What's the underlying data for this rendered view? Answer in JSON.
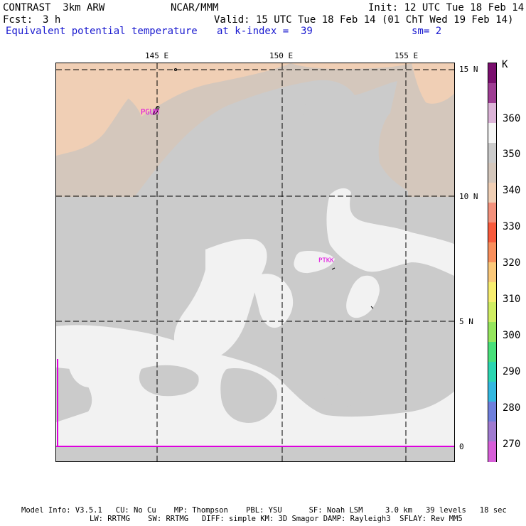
{
  "header": {
    "model": "CONTRAST  3km ARW",
    "org": "NCAR/MMM",
    "init": "Init: 12 UTC Tue 18 Feb 14",
    "fcst_label": "Fcst:",
    "fcst_value": "3 h",
    "valid": "Valid: 15 UTC Tue 18 Feb 14 (01 ChT Wed 19 Feb 14)",
    "field": "Equivalent potential temperature",
    "level": "at k-index =  39",
    "smooth": "sm= 2"
  },
  "axes": {
    "lon_labels": [
      "145 E",
      "150 E",
      "155 E"
    ],
    "lat_labels": [
      "15 N",
      "10 N",
      "5 N",
      "0"
    ]
  },
  "stations": [
    "PGUM",
    "PTKK"
  ],
  "legend": {
    "unit": "K",
    "ticks": [
      "360",
      "350",
      "340",
      "330",
      "320",
      "310",
      "300",
      "290",
      "280",
      "270"
    ],
    "colors": [
      "#7a0f6e",
      "#9e3d93",
      "#dcb4d8",
      "#f5f5f5",
      "#cbcbcb",
      "#d4c7bc",
      "#f0cfb5",
      "#f3917c",
      "#f85a3c",
      "#f98f5c",
      "#fbc97a",
      "#f8ee70",
      "#d0ee63",
      "#95e65d",
      "#48e07a",
      "#2bd6b1",
      "#33b8e0",
      "#6f7fdc",
      "#a07bd0",
      "#d75fd8"
    ]
  },
  "colors": {
    "warm_region": "#f0cfb5",
    "mid_region": "#d4c7bc",
    "base_region": "#cbcbcb",
    "light_region": "#f2f2f2",
    "station_label": "#e000e0",
    "title_blue": "#1a1ad0"
  },
  "footer": {
    "line1": "Model Info: V3.5.1   CU: No Cu    MP: Thompson    PBL: YSU      SF: Noah LSM     3.0 km   39 levels   18 sec",
    "line2": "LW: RRTMG    SW: RRTMG   DIFF: simple KM: 3D Smagor DAMP: Rayleigh3  SFLAY: Rev MM5"
  }
}
